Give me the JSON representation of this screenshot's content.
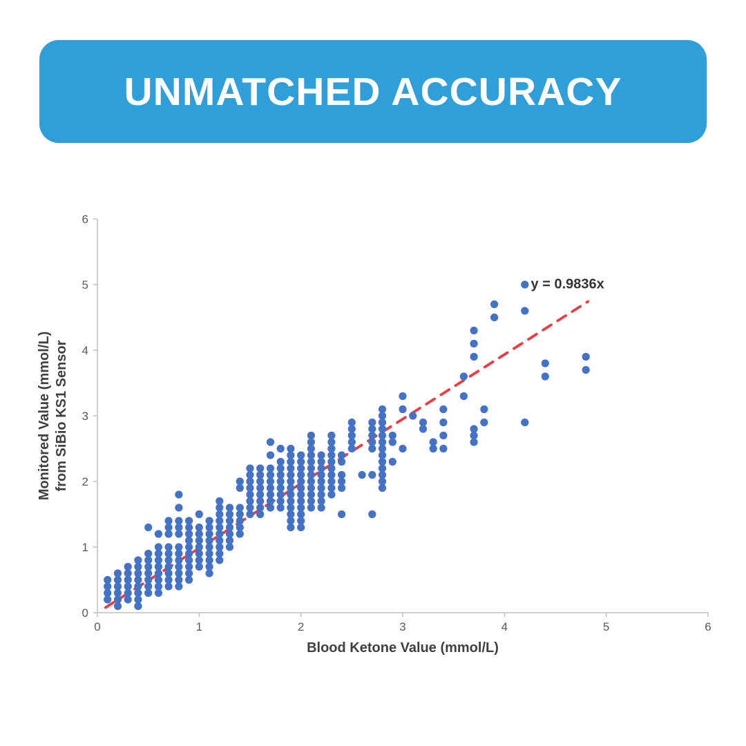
{
  "banner": {
    "title": "UNMATCHED ACCURACY",
    "bg_color": "#2E9FD8",
    "text_color": "#FFFFFF"
  },
  "chart_data": {
    "type": "scatter",
    "title": "",
    "xlabel": "Blood Ketone Value (mmol/L)",
    "ylabel_lines": [
      "Monitored Value (mmol/L)",
      "from SiBio KS1 Sensor"
    ],
    "xlim": [
      0,
      6
    ],
    "ylim": [
      0,
      6
    ],
    "xticks": [
      0,
      1,
      2,
      3,
      4,
      5,
      6
    ],
    "yticks": [
      0,
      1,
      2,
      3,
      4,
      5,
      6
    ],
    "grid": false,
    "legend": "none",
    "point_color": "#4472C4",
    "axis_color": "#BFBFBF",
    "tick_label_color": "#595959",
    "axis_title_color": "#404040",
    "trendline": {
      "label": "y = 0.9836x",
      "slope": 0.9836,
      "x_start": 0.08,
      "x_end": 4.82,
      "color": "#EE3A40",
      "label_color": "#333333",
      "label_pos": [
        4.62,
        4.94
      ]
    },
    "columns": [
      {
        "x": 0.1,
        "ys": [
          0.2,
          0.3,
          0.4,
          0.5
        ]
      },
      {
        "x": 0.2,
        "ys": [
          0.1,
          0.2,
          0.3,
          0.4,
          0.5,
          0.6
        ]
      },
      {
        "x": 0.3,
        "ys": [
          0.2,
          0.3,
          0.4,
          0.5,
          0.6,
          0.7
        ]
      },
      {
        "x": 0.4,
        "ys": [
          0.1,
          0.2,
          0.3,
          0.4,
          0.5,
          0.6,
          0.7,
          0.8
        ]
      },
      {
        "x": 0.5,
        "ys": [
          0.3,
          0.4,
          0.5,
          0.6,
          0.7,
          0.8,
          0.9,
          1.3
        ]
      },
      {
        "x": 0.6,
        "ys": [
          0.3,
          0.4,
          0.5,
          0.6,
          0.7,
          0.8,
          0.9,
          1.0,
          1.2
        ]
      },
      {
        "x": 0.7,
        "ys": [
          0.4,
          0.5,
          0.6,
          0.7,
          0.8,
          0.9,
          1.0,
          1.2,
          1.3,
          1.4
        ]
      },
      {
        "x": 0.8,
        "ys": [
          0.4,
          0.5,
          0.6,
          0.7,
          0.8,
          0.9,
          1.0,
          1.2,
          1.3,
          1.4,
          1.6,
          1.8
        ]
      },
      {
        "x": 0.9,
        "ys": [
          0.5,
          0.6,
          0.7,
          0.8,
          0.9,
          1.0,
          1.1,
          1.2,
          1.3,
          1.4
        ]
      },
      {
        "x": 1.0,
        "ys": [
          0.7,
          0.8,
          0.9,
          1.0,
          1.1,
          1.2,
          1.3,
          1.5
        ]
      },
      {
        "x": 1.1,
        "ys": [
          0.6,
          0.7,
          0.8,
          0.9,
          1.0,
          1.1,
          1.2,
          1.3,
          1.4
        ]
      },
      {
        "x": 1.2,
        "ys": [
          0.8,
          0.9,
          1.0,
          1.1,
          1.2,
          1.3,
          1.4,
          1.5,
          1.6,
          1.7
        ]
      },
      {
        "x": 1.3,
        "ys": [
          1.0,
          1.1,
          1.2,
          1.3,
          1.4,
          1.5,
          1.6
        ]
      },
      {
        "x": 1.4,
        "ys": [
          1.2,
          1.3,
          1.4,
          1.5,
          1.6,
          1.9,
          2.0
        ]
      },
      {
        "x": 1.5,
        "ys": [
          1.5,
          1.6,
          1.7,
          1.8,
          1.9,
          2.0,
          2.1,
          2.2
        ]
      },
      {
        "x": 1.6,
        "ys": [
          1.5,
          1.6,
          1.7,
          1.8,
          1.9,
          2.0,
          2.1,
          2.2
        ]
      },
      {
        "x": 1.7,
        "ys": [
          1.6,
          1.7,
          1.8,
          1.9,
          2.0,
          2.1,
          2.2,
          2.4,
          2.6
        ]
      },
      {
        "x": 1.8,
        "ys": [
          1.6,
          1.7,
          1.8,
          1.9,
          2.0,
          2.1,
          2.2,
          2.3,
          2.5
        ]
      },
      {
        "x": 1.9,
        "ys": [
          1.3,
          1.4,
          1.5,
          1.6,
          1.7,
          1.8,
          1.9,
          2.0,
          2.1,
          2.2,
          2.3,
          2.4,
          2.5
        ]
      },
      {
        "x": 2.0,
        "ys": [
          1.3,
          1.4,
          1.5,
          1.6,
          1.7,
          1.8,
          1.9,
          2.0,
          2.1,
          2.2,
          2.3,
          2.4
        ]
      },
      {
        "x": 2.1,
        "ys": [
          1.6,
          1.7,
          1.8,
          1.9,
          2.0,
          2.1,
          2.2,
          2.3,
          2.4,
          2.5,
          2.6,
          2.7
        ]
      },
      {
        "x": 2.2,
        "ys": [
          1.6,
          1.7,
          1.8,
          1.9,
          2.0,
          2.1,
          2.2,
          2.3,
          2.4
        ]
      },
      {
        "x": 2.3,
        "ys": [
          1.8,
          1.9,
          2.0,
          2.1,
          2.2,
          2.3,
          2.4,
          2.5,
          2.6,
          2.7
        ]
      },
      {
        "x": 2.4,
        "ys": [
          1.5,
          1.9,
          2.0,
          2.1,
          2.3,
          2.4
        ]
      },
      {
        "x": 2.5,
        "ys": [
          2.5,
          2.6,
          2.7,
          2.8,
          2.9
        ]
      },
      {
        "x": 2.6,
        "ys": [
          2.1
        ]
      },
      {
        "x": 2.7,
        "ys": [
          1.5,
          2.1,
          2.5,
          2.6,
          2.7,
          2.8,
          2.9
        ]
      },
      {
        "x": 2.8,
        "ys": [
          1.9,
          2.0,
          2.1,
          2.2,
          2.3,
          2.4,
          2.5,
          2.6,
          2.7,
          2.8,
          2.9,
          3.0,
          3.1
        ]
      },
      {
        "x": 2.9,
        "ys": [
          2.3,
          2.6,
          2.7
        ]
      },
      {
        "x": 3.0,
        "ys": [
          2.5,
          3.1,
          3.3
        ]
      },
      {
        "x": 3.1,
        "ys": [
          3.0
        ]
      },
      {
        "x": 3.2,
        "ys": [
          2.8,
          2.9
        ]
      },
      {
        "x": 3.3,
        "ys": [
          2.5,
          2.6
        ]
      },
      {
        "x": 3.4,
        "ys": [
          2.5,
          2.7,
          2.9,
          3.1
        ]
      },
      {
        "x": 3.6,
        "ys": [
          3.3,
          3.6
        ]
      },
      {
        "x": 3.7,
        "ys": [
          2.6,
          2.7,
          2.8,
          3.9,
          4.1,
          4.3
        ]
      },
      {
        "x": 3.8,
        "ys": [
          2.9,
          3.1
        ]
      },
      {
        "x": 3.9,
        "ys": [
          4.5,
          4.7
        ]
      },
      {
        "x": 4.2,
        "ys": [
          2.9,
          4.6,
          5.0
        ]
      },
      {
        "x": 4.4,
        "ys": [
          3.6,
          3.8
        ]
      },
      {
        "x": 4.8,
        "ys": [
          3.7,
          3.9
        ]
      }
    ]
  }
}
